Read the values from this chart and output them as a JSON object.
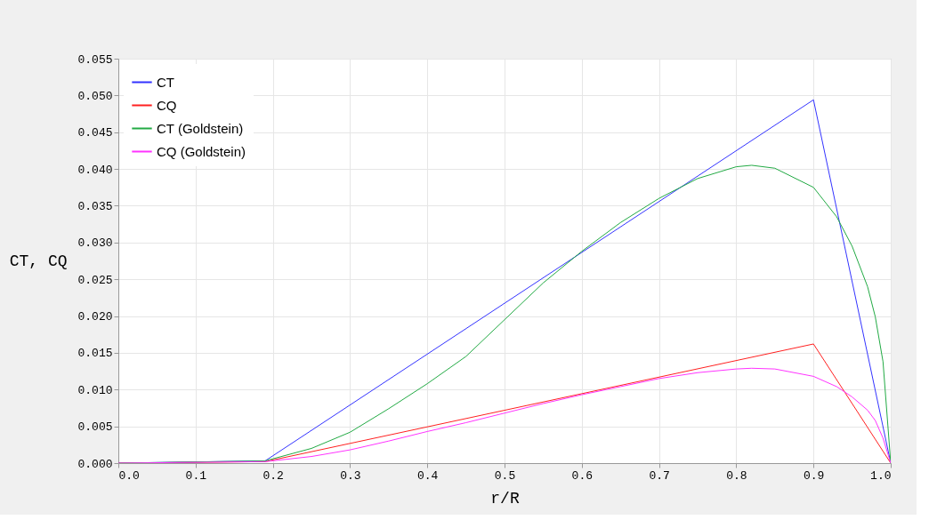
{
  "chart_data": {
    "type": "line",
    "xlabel": "r/R",
    "ylabel": "CT, CQ",
    "xlim": [
      0,
      1
    ],
    "xticks": [
      {
        "value": 0,
        "label": "0.0"
      },
      {
        "value": 0.1,
        "label": "0.1"
      },
      {
        "value": 0.2,
        "label": "0.2"
      },
      {
        "value": 0.3,
        "label": "0.3"
      },
      {
        "value": 0.4,
        "label": "0.4"
      },
      {
        "value": 0.5,
        "label": "0.5"
      },
      {
        "value": 0.6,
        "label": "0.6"
      },
      {
        "value": 0.7,
        "label": "0.7"
      },
      {
        "value": 0.8,
        "label": "0.8"
      },
      {
        "value": 0.9,
        "label": "0.9"
      },
      {
        "value": 1,
        "label": "1.0"
      }
    ],
    "ylim": [
      0,
      0.055
    ],
    "yticks": [
      {
        "value": 0,
        "label": "0.000"
      },
      {
        "value": 0.005,
        "label": "0.005"
      },
      {
        "value": 0.01,
        "label": "0.010"
      },
      {
        "value": 0.015,
        "label": "0.015"
      },
      {
        "value": 0.02,
        "label": "0.020"
      },
      {
        "value": 0.025,
        "label": "0.025"
      },
      {
        "value": 0.03,
        "label": "0.030"
      },
      {
        "value": 0.035,
        "label": "0.035"
      },
      {
        "value": 0.04,
        "label": "0.040"
      },
      {
        "value": 0.045,
        "label": "0.045"
      },
      {
        "value": 0.05,
        "label": "0.050"
      },
      {
        "value": 0.055,
        "label": "0.055"
      }
    ],
    "grid": true,
    "legend": "top left",
    "marker": "none",
    "line_style": "solid",
    "series": [
      {
        "name": "CT",
        "color": "#3333ff",
        "x": [
          0,
          0.19,
          0.9,
          1.0
        ],
        "values": [
          0,
          0.0003,
          0.0494,
          0
        ]
      },
      {
        "name": "CQ",
        "color": "#ff2020",
        "x": [
          0,
          0.19,
          0.9,
          1.0
        ],
        "values": [
          0,
          0.0002,
          0.0162,
          0
        ]
      },
      {
        "name": "CT (Goldstein)",
        "color": "#22aa44",
        "x": [
          0,
          0.19,
          0.25,
          0.3,
          0.35,
          0.4,
          0.45,
          0.5,
          0.55,
          0.6,
          0.65,
          0.7,
          0.75,
          0.8,
          0.82,
          0.85,
          0.9,
          0.93,
          0.95,
          0.97,
          0.98,
          0.99,
          1.0
        ],
        "values": [
          0,
          0.0003,
          0.002,
          0.0042,
          0.0074,
          0.0108,
          0.0145,
          0.0195,
          0.0245,
          0.0288,
          0.0327,
          0.036,
          0.0387,
          0.0403,
          0.0405,
          0.0401,
          0.0375,
          0.0335,
          0.0295,
          0.024,
          0.0199,
          0.0138,
          0
        ]
      },
      {
        "name": "CQ (Goldstein)",
        "color": "#ff33ff",
        "x": [
          0,
          0.19,
          0.25,
          0.3,
          0.35,
          0.4,
          0.45,
          0.5,
          0.55,
          0.6,
          0.65,
          0.7,
          0.75,
          0.8,
          0.82,
          0.85,
          0.9,
          0.93,
          0.95,
          0.97,
          0.98,
          0.99,
          1.0
        ],
        "values": [
          0,
          0.0002,
          0.0009,
          0.0018,
          0.003,
          0.0043,
          0.0055,
          0.0068,
          0.0081,
          0.0093,
          0.0104,
          0.0115,
          0.0123,
          0.0128,
          0.0129,
          0.0128,
          0.0118,
          0.0104,
          0.009,
          0.0072,
          0.0058,
          0.0034,
          0
        ]
      }
    ]
  }
}
